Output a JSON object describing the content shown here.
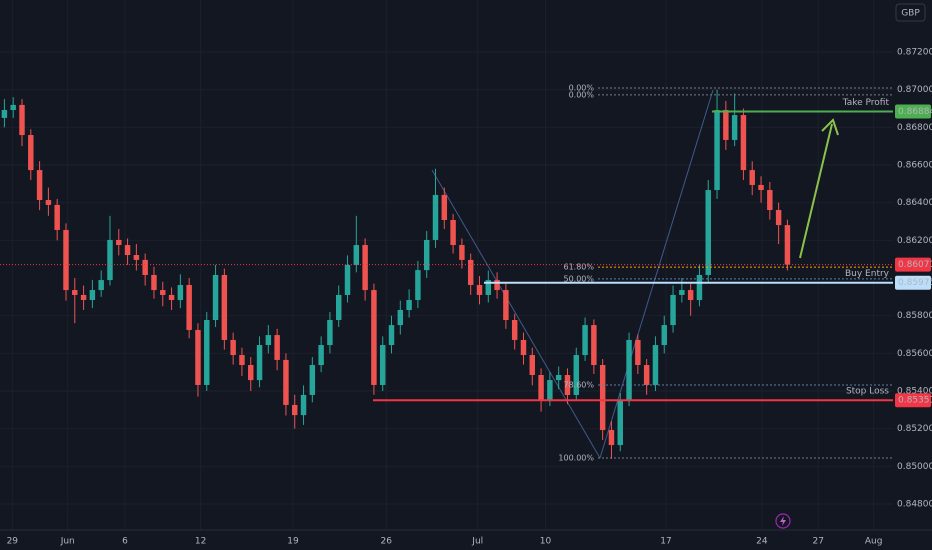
{
  "chart_data": {
    "type": "candlestick",
    "currency": "GBP",
    "up_color": "#26a69a",
    "down_color": "#ef5350",
    "grid": true,
    "xlim": [
      0,
      101.5
    ],
    "xticks": [
      {
        "value": 1.4,
        "label": "29"
      },
      {
        "value": 7.7,
        "label": "Jun"
      },
      {
        "value": 14.2,
        "label": "6"
      },
      {
        "value": 22.8,
        "label": "12"
      },
      {
        "value": 33.3,
        "label": "19"
      },
      {
        "value": 43.9,
        "label": "26"
      },
      {
        "value": 54.3,
        "label": "Jul"
      },
      {
        "value": 62,
        "label": "10"
      },
      {
        "value": 75.7,
        "label": "17"
      },
      {
        "value": 86.6,
        "label": "24"
      },
      {
        "value": 93,
        "label": "27"
      },
      {
        "value": 99.3,
        "label": "Aug"
      }
    ],
    "ylim": [
      0.84662,
      0.87476
    ],
    "yticks": [
      {
        "value": 0.872,
        "label": "0.87200"
      },
      {
        "value": 0.87,
        "label": "0.87000"
      },
      {
        "value": 0.868,
        "label": "0.86800"
      },
      {
        "value": 0.866,
        "label": "0.86600"
      },
      {
        "value": 0.864,
        "label": "0.86400"
      },
      {
        "value": 0.862,
        "label": "0.86200"
      },
      {
        "value": 0.858,
        "label": "0.85800"
      },
      {
        "value": 0.856,
        "label": "0.85600"
      },
      {
        "value": 0.854,
        "label": "0.85400"
      },
      {
        "value": 0.852,
        "label": "0.85200"
      },
      {
        "value": 0.85,
        "label": "0.85000"
      },
      {
        "value": 0.848,
        "label": "0.84800"
      }
    ],
    "open": [
      0.8685,
      0.86892,
      0.86919,
      0.86759,
      0.86573,
      0.86414,
      0.86388,
      0.86255,
      0.85936,
      0.8591,
      0.85883,
      0.85936,
      0.85989,
      0.86202,
      0.86175,
      0.86122,
      0.86096,
      0.86016,
      0.85936,
      0.8591,
      0.85883,
      0.85963,
      0.85724,
      0.85432,
      0.85777,
      0.86016,
      0.85671,
      0.85591,
      0.85538,
      0.85458,
      0.85644,
      0.85697,
      0.85565,
      0.85326,
      0.85272,
      0.85379,
      0.85538,
      0.85644,
      0.85777,
      0.8591,
      0.86069,
      0.86175,
      0.85936,
      0.85432,
      0.85644,
      0.8575,
      0.8583,
      0.85883,
      0.86042,
      0.86202,
      0.86441,
      0.86308,
      0.86175,
      0.86096,
      0.85963,
      0.8591,
      0.85989,
      0.85936,
      0.85777,
      0.85671,
      0.85591,
      0.85485,
      0.85352,
      0.85458,
      0.85485,
      0.85379,
      0.85591,
      0.8575,
      0.85538,
      0.85193,
      0.85113,
      0.85352,
      0.85671,
      0.85538,
      0.85432,
      0.85644,
      0.8575,
      0.8591,
      0.85936,
      0.85883,
      0.86016,
      0.86467,
      0.86892,
      0.86733,
      0.86865,
      0.86573,
      0.86494,
      0.86467,
      0.86361,
      0.86281
    ],
    "high": [
      0.8695,
      0.8696,
      0.8695,
      0.8679,
      0.8662,
      0.8648,
      0.8642,
      0.8629,
      0.86,
      0.8596,
      0.8599,
      0.8604,
      0.8633,
      0.8626,
      0.8621,
      0.8618,
      0.8613,
      0.8606,
      0.8598,
      0.8595,
      0.8602,
      0.86,
      0.8576,
      0.8582,
      0.8607,
      0.8605,
      0.8571,
      0.8563,
      0.8558,
      0.8569,
      0.8575,
      0.8573,
      0.856,
      0.8538,
      0.8543,
      0.8558,
      0.8569,
      0.8582,
      0.8596,
      0.8612,
      0.8633,
      0.8621,
      0.8597,
      0.8569,
      0.858,
      0.8588,
      0.8594,
      0.8609,
      0.8625,
      0.8658,
      0.8648,
      0.8634,
      0.8621,
      0.8613,
      0.8601,
      0.8604,
      0.8603,
      0.8597,
      0.8581,
      0.8571,
      0.8563,
      0.8552,
      0.855,
      0.8553,
      0.8552,
      0.8563,
      0.8579,
      0.8578,
      0.8557,
      0.8524,
      0.8539,
      0.8571,
      0.857,
      0.8557,
      0.8569,
      0.858,
      0.8596,
      0.86,
      0.8597,
      0.8607,
      0.8652,
      0.87,
      0.8694,
      0.8698,
      0.869,
      0.8662,
      0.8654,
      0.8651,
      0.864,
      0.8631
    ],
    "low": [
      0.868,
      0.8685,
      0.867,
      0.8652,
      0.8636,
      0.8633,
      0.862,
      0.8588,
      0.8576,
      0.8583,
      0.8584,
      0.859,
      0.8596,
      0.8612,
      0.8607,
      0.8604,
      0.8596,
      0.8589,
      0.8585,
      0.8583,
      0.8584,
      0.8568,
      0.8537,
      0.854,
      0.8574,
      0.8562,
      0.8554,
      0.8548,
      0.854,
      0.8542,
      0.856,
      0.8551,
      0.8527,
      0.852,
      0.8522,
      0.8534,
      0.855,
      0.856,
      0.8574,
      0.8587,
      0.8603,
      0.8588,
      0.8538,
      0.854,
      0.856,
      0.857,
      0.8579,
      0.8584,
      0.86,
      0.8616,
      0.8626,
      0.8613,
      0.8605,
      0.8591,
      0.8586,
      0.8587,
      0.8589,
      0.8573,
      0.8562,
      0.8554,
      0.8543,
      0.8529,
      0.8532,
      0.8541,
      0.8533,
      0.8535,
      0.8556,
      0.8549,
      0.8514,
      0.8504,
      0.8508,
      0.8532,
      0.8549,
      0.8538,
      0.854,
      0.856,
      0.8571,
      0.8587,
      0.858,
      0.8585,
      0.8598,
      0.8642,
      0.8668,
      0.867,
      0.8652,
      0.8644,
      0.864,
      0.8631,
      0.8618,
      0.8604
    ],
    "close": [
      0.86892,
      0.86919,
      0.86759,
      0.86573,
      0.86414,
      0.86388,
      0.86255,
      0.85936,
      0.8591,
      0.85883,
      0.85936,
      0.85989,
      0.86202,
      0.86175,
      0.86122,
      0.86096,
      0.86016,
      0.85936,
      0.8591,
      0.85883,
      0.85963,
      0.85724,
      0.85432,
      0.85777,
      0.86016,
      0.85671,
      0.85591,
      0.85538,
      0.85458,
      0.85644,
      0.85697,
      0.85565,
      0.85326,
      0.85272,
      0.85379,
      0.85538,
      0.85644,
      0.85777,
      0.8591,
      0.86069,
      0.86175,
      0.85936,
      0.85432,
      0.85644,
      0.8575,
      0.8583,
      0.85883,
      0.86042,
      0.86202,
      0.86441,
      0.86308,
      0.86175,
      0.86096,
      0.85963,
      0.8591,
      0.85989,
      0.85936,
      0.85777,
      0.85671,
      0.85591,
      0.85485,
      0.85352,
      0.85458,
      0.85485,
      0.85379,
      0.85591,
      0.8575,
      0.85538,
      0.85193,
      0.85113,
      0.85352,
      0.85671,
      0.85538,
      0.85432,
      0.85644,
      0.8575,
      0.8591,
      0.85936,
      0.85883,
      0.86016,
      0.86467,
      0.86892,
      0.86733,
      0.86865,
      0.86573,
      0.86494,
      0.86467,
      0.86361,
      0.86281,
      0.86071
    ],
    "current_price": {
      "price": 0.86071,
      "color": "#f23645"
    },
    "levels": [
      {
        "name": "Take Profit",
        "price": 0.86884,
        "color": "#4caf50",
        "text_color": "#66bb6a"
      },
      {
        "name": "Buy Entry",
        "price": 0.85975,
        "color": "#bbdefb",
        "text_color": "#e3f2fd"
      },
      {
        "name": "Stop Loss",
        "price": 0.85351,
        "color": "#f23645",
        "text_color": "#f23645"
      }
    ],
    "fib_levels": [
      {
        "label": "0.00%",
        "price": 0.87009,
        "color": "#787b86"
      },
      {
        "label": "0.00%",
        "price": 0.86972,
        "color": "#787b86"
      },
      {
        "label": "61.80%",
        "price": 0.86058,
        "color": "#f7a600"
      },
      {
        "label": "50.00%",
        "price": 0.85995,
        "color": "#5d7fa6"
      },
      {
        "label": "78.60%",
        "price": 0.85432,
        "color": "#5d7fa6"
      },
      {
        "label": "100.00%",
        "price": 0.85044,
        "color": "#787b86"
      }
    ]
  }
}
